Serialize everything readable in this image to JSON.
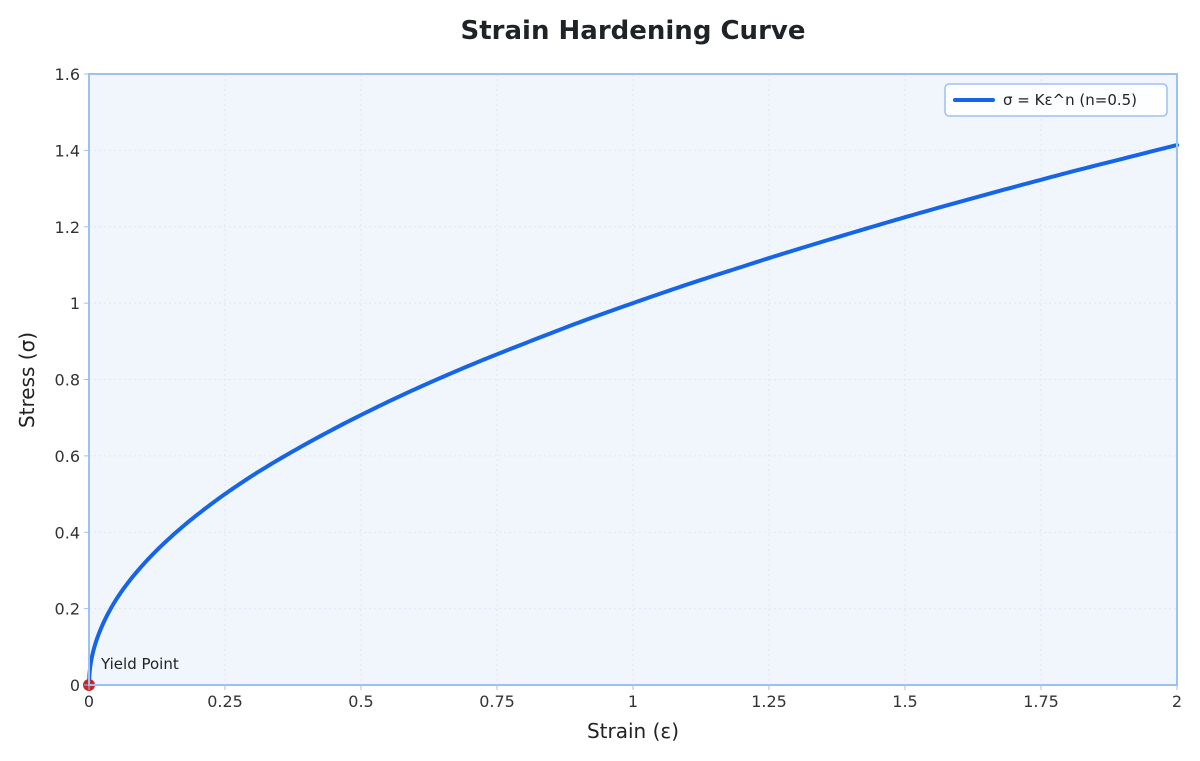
{
  "chart_data": {
    "type": "line",
    "title": "Strain Hardening Curve",
    "xlabel": "Strain (ε)",
    "ylabel": "Stress (σ)",
    "xlim": [
      0,
      2
    ],
    "ylim": [
      0,
      1.6
    ],
    "xticks": [
      "0",
      "0.25",
      "0.5",
      "0.75",
      "1",
      "1.25",
      "1.5",
      "1.75",
      "2"
    ],
    "yticks": [
      "0",
      "0.2",
      "0.4",
      "0.6",
      "0.8",
      "1",
      "1.2",
      "1.4",
      "1.6"
    ],
    "grid": true,
    "legend_position": "top-right",
    "series": [
      {
        "name": "σ = Kε^n (n=0.5)",
        "color": "#1565e6",
        "x": [
          0,
          0.01,
          0.02,
          0.05,
          0.1,
          0.15,
          0.2,
          0.25,
          0.3,
          0.4,
          0.5,
          0.6,
          0.7,
          0.75,
          0.8,
          0.9,
          1.0,
          1.1,
          1.2,
          1.25,
          1.3,
          1.4,
          1.5,
          1.6,
          1.7,
          1.75,
          1.8,
          1.9,
          2.0
        ],
        "y": [
          0,
          0.1,
          0.141,
          0.224,
          0.316,
          0.387,
          0.447,
          0.5,
          0.548,
          0.632,
          0.707,
          0.775,
          0.837,
          0.866,
          0.894,
          0.949,
          1.0,
          1.049,
          1.095,
          1.118,
          1.14,
          1.183,
          1.225,
          1.265,
          1.304,
          1.323,
          1.342,
          1.378,
          1.414
        ]
      }
    ],
    "annotations": [
      {
        "text": "Yield Point",
        "x": 0,
        "y": 0,
        "marker_color": "#c62828"
      }
    ],
    "colors": {
      "plot_background": "#f1f6fd",
      "plot_border": "#9ec1f0",
      "grid": "#dbe6f5"
    }
  }
}
